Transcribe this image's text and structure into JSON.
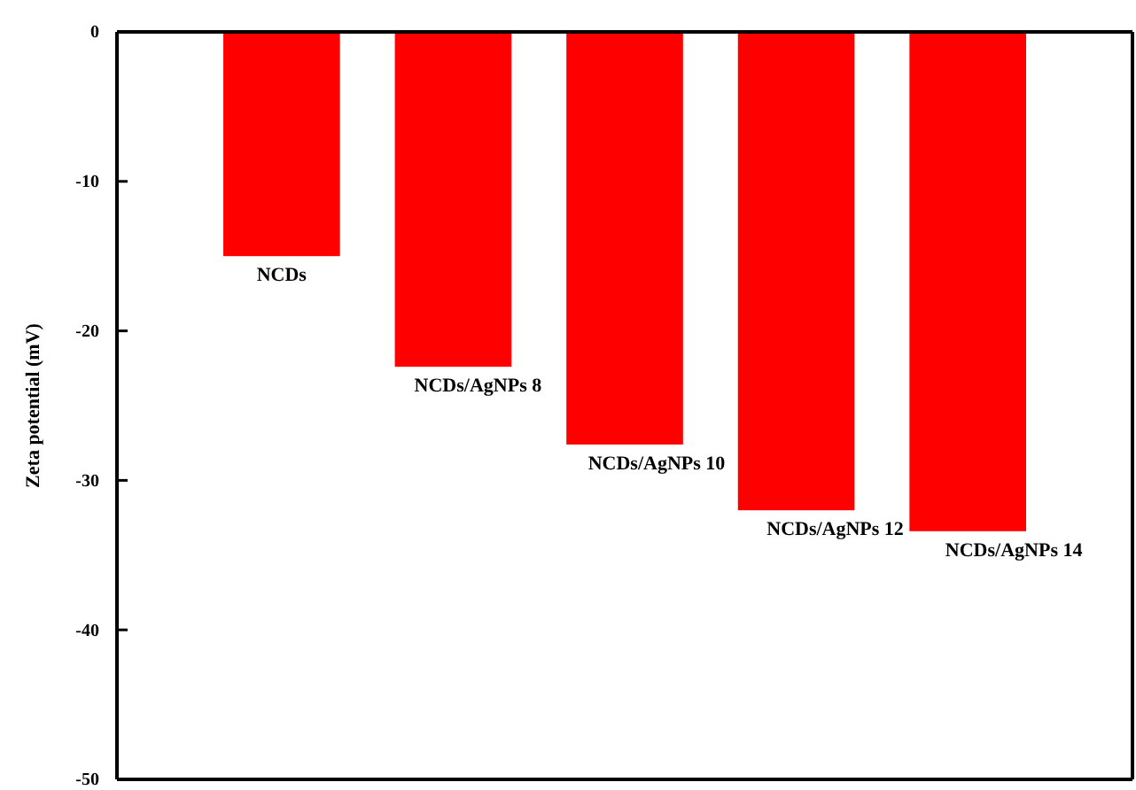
{
  "chart_data": {
    "type": "bar",
    "ylabel": "Zeta potential (mV)",
    "categories": [
      "NCDs",
      "NCDs/AgNPs 8",
      "NCDs/AgNPs 10",
      "NCDs/AgNPs 12",
      "NCDs/AgNPs 14"
    ],
    "values": [
      -15,
      -22.4,
      -27.6,
      -32,
      -33.4
    ],
    "color": "#ff0000",
    "ylim": [
      -50,
      0
    ],
    "yticks": [
      0,
      -10,
      -20,
      -30,
      -40,
      -50
    ],
    "grid": false
  }
}
